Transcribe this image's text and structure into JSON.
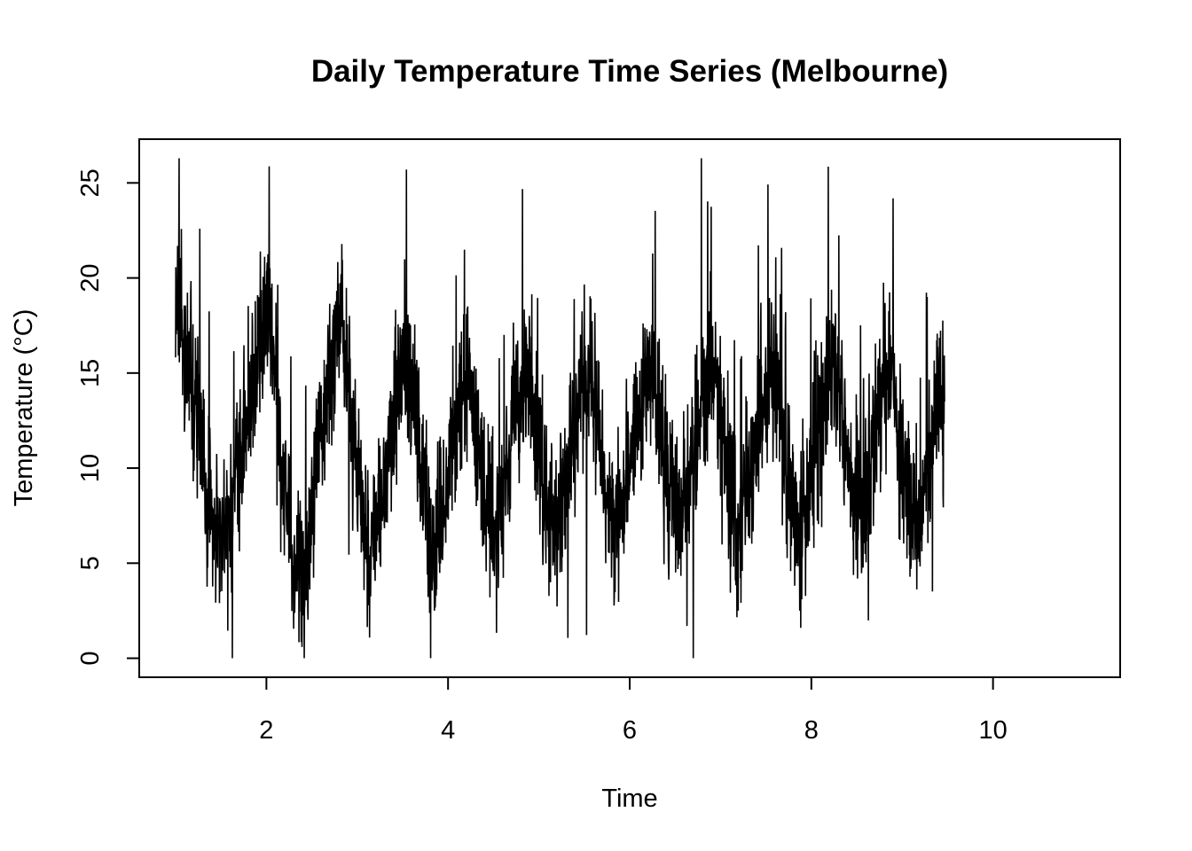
{
  "chart_data": {
    "type": "line",
    "title": "Daily Temperature Time Series (Melbourne)",
    "xlabel": "Time",
    "ylabel": "Temperature (°C)",
    "xlim": [
      0.6,
      11.4
    ],
    "ylim": [
      -1.0,
      27.3
    ],
    "xticks": [
      2,
      4,
      6,
      8,
      10
    ],
    "yticks": [
      0,
      5,
      10,
      15,
      20,
      25
    ],
    "grid": false,
    "legend": "none",
    "line_color": "#000000",
    "series": [
      {
        "x_start": 1.0,
        "x_step": 0.033333,
        "values": [
          17.8,
          19.6,
          17.4,
          15.2,
          15.9,
          15.0,
          12.2,
          13.3,
          11.8,
          10.4,
          9.3,
          8.7,
          8.2,
          6.9,
          7.4,
          5.4,
          6.8,
          8.4,
          7.6,
          9.3,
          10.6,
          11.2,
          11.5,
          12.6,
          13.1,
          13.6,
          14.4,
          15.3,
          16.9,
          17.4,
          18.6,
          17.9,
          16.2,
          14.7,
          12.6,
          10.3,
          8.9,
          7.6,
          6.2,
          4.5,
          5.1,
          4.3,
          4.7,
          5.5,
          6.1,
          8.3,
          9.6,
          10.9,
          11.8,
          12.5,
          13.3,
          14.9,
          15.4,
          16.7,
          17.8,
          17.3,
          16.1,
          14.5,
          13.0,
          11.1,
          9.5,
          8.2,
          7.3,
          6.5,
          5.5,
          6.3,
          6.8,
          7.2,
          8.0,
          9.3,
          10.8,
          11.6,
          12.5,
          13.2,
          14.1,
          14.7,
          15.8,
          15.3,
          14.2,
          13.0,
          12.1,
          10.5,
          9.1,
          7.8,
          6.8,
          5.5,
          5.9,
          6.6,
          7.5,
          8.2,
          9.5,
          10.8,
          11.7,
          12.9,
          14.0,
          14.7,
          15.2,
          14.5,
          13.4,
          12.4,
          11.3,
          10.6,
          9.5,
          8.7,
          7.6,
          6.5,
          7.3,
          7.8,
          8.6,
          9.4,
          10.3,
          11.1,
          12.0,
          12.6,
          13.4,
          14.1,
          14.6,
          14.2,
          13.6,
          12.3,
          11.1,
          10.0,
          9.1,
          8.0,
          7.2,
          6.5,
          7.0,
          7.8,
          8.3,
          9.2,
          10.5,
          11.2,
          12.3,
          13.0,
          14.1,
          14.4,
          15.2,
          14.6,
          13.9,
          12.7,
          11.7,
          10.5,
          9.6,
          8.8,
          7.6,
          6.8,
          7.0,
          8.0,
          8.7,
          9.5,
          10.4,
          11.3,
          12.1,
          13.1,
          13.6,
          14.3,
          15.0,
          14.9,
          14.0,
          13.0,
          12.1,
          10.9,
          10.0,
          9.1,
          8.3,
          7.4,
          6.9,
          7.6,
          8.3,
          9.2,
          10.2,
          11.0,
          11.7,
          12.8,
          13.4,
          14.3,
          14.8,
          15.7,
          15.1,
          14.0,
          12.9,
          11.6,
          10.2,
          9.3,
          8.1,
          7.1,
          6.4,
          7.2,
          7.9,
          8.9,
          9.7,
          10.4,
          11.3,
          12.6,
          13.4,
          14.2,
          15.0,
          15.4,
          14.6,
          13.7,
          12.4,
          11.2,
          10.0,
          8.9,
          7.8,
          7.1,
          6.5,
          7.4,
          8.0,
          8.8,
          9.8,
          10.9,
          11.8,
          12.8,
          13.8,
          14.5,
          15.3,
          15.2,
          14.3,
          13.3,
          12.2,
          11.1,
          10.0,
          9.0,
          8.1,
          7.6,
          7.8,
          8.2,
          8.9,
          9.6,
          10.6,
          11.6,
          12.7,
          13.5,
          14.3,
          14.9,
          15.0,
          14.1,
          13.1,
          12.0,
          11.0,
          9.9,
          8.9,
          8.0,
          7.3,
          7.0,
          7.6,
          8.4,
          9.4,
          10.4,
          11.3,
          12.5,
          13.3,
          14.0,
          13.5
        ]
      }
    ],
    "noise_seed": 20250601,
    "noise_amplitude": 3.2,
    "sub_samples_per_step": 12
  }
}
